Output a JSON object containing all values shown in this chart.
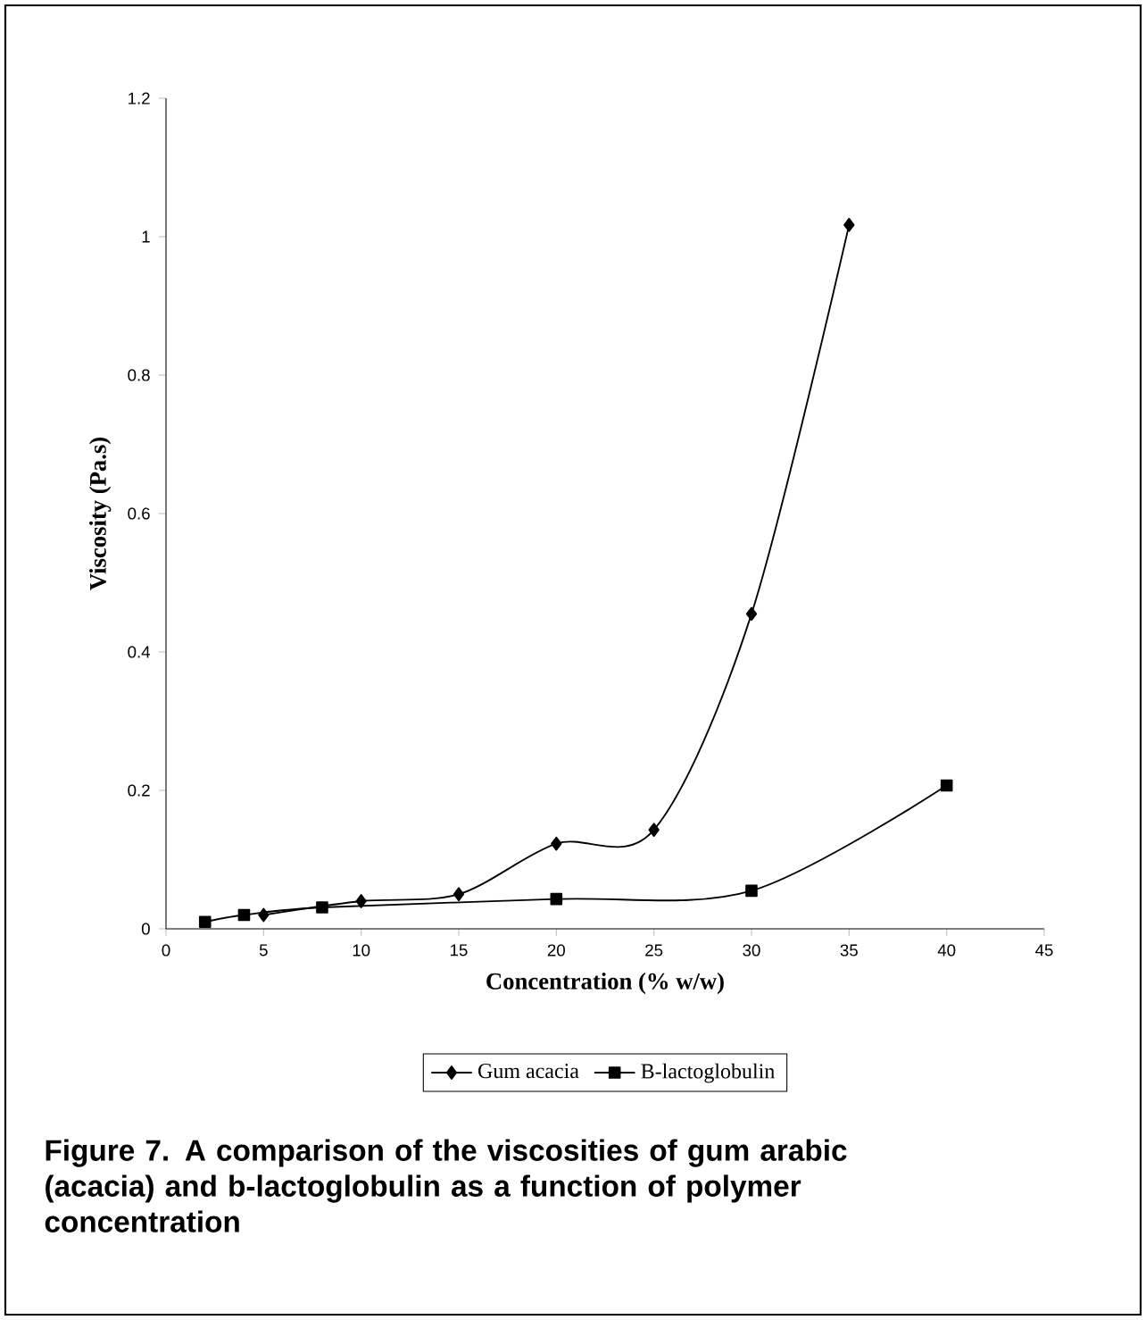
{
  "chart_data": {
    "type": "line",
    "xlabel": "Concentration (% w/w)",
    "ylabel": "Viscosity (Pa.s)",
    "annotations": [
      "Figure 7. A comparison of the viscosities of gum arabic (acacia) and b-lactoglobulin as a function of polymer concentration"
    ],
    "xlim": [
      0,
      45
    ],
    "xticks": [
      0,
      5,
      10,
      15,
      20,
      25,
      30,
      35,
      40,
      45
    ],
    "ylim": [
      0,
      1.2
    ],
    "yticks": [
      0,
      0.2,
      0.4,
      0.6,
      0.8,
      1,
      1.2
    ],
    "grid": false,
    "legend": "bottom",
    "series": [
      {
        "name": "Gum acacia",
        "color": "#000000",
        "marker": "diamond",
        "x": [
          5,
          10,
          15,
          20,
          25,
          30,
          35
        ],
        "values": [
          0.02,
          0.04,
          0.05,
          0.123,
          0.143,
          0.455,
          1.017
        ]
      },
      {
        "name": "B-lactoglobulin",
        "color": "#000000",
        "marker": "square",
        "x": [
          2,
          4,
          8,
          20,
          30,
          40
        ],
        "values": [
          0.01,
          0.02,
          0.031,
          0.043,
          0.055,
          0.207
        ]
      }
    ]
  }
}
